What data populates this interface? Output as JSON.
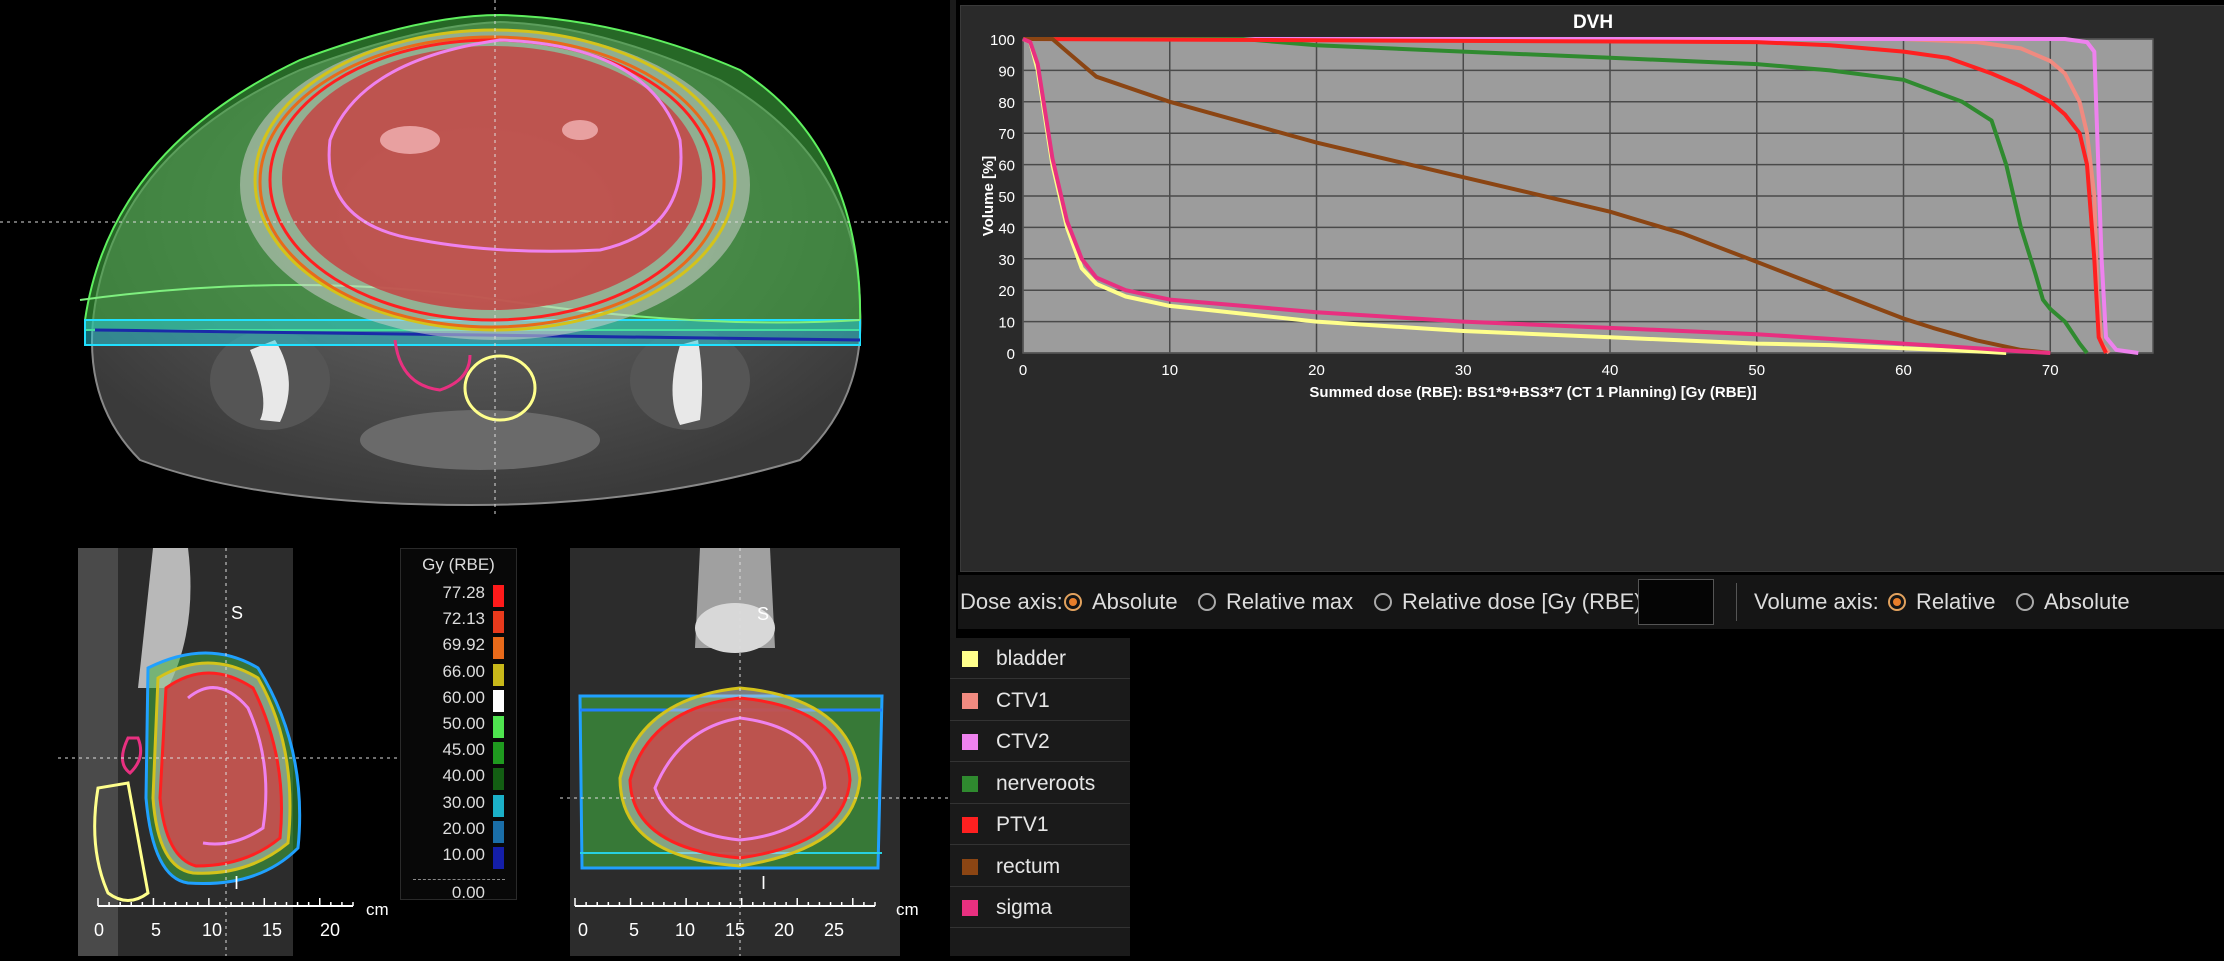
{
  "colorbar": {
    "title": "Gy (RBE)",
    "levels": [
      {
        "value": "77.28",
        "color": "#ff1a1a"
      },
      {
        "value": "72.13",
        "color": "#e83a1c"
      },
      {
        "value": "69.92",
        "color": "#e86a1a"
      },
      {
        "value": "66.00",
        "color": "#c8b81a"
      },
      {
        "value": "60.00",
        "color": "#ffffff"
      },
      {
        "value": "50.00",
        "color": "#4fe44f"
      },
      {
        "value": "45.00",
        "color": "#1f9a1f"
      },
      {
        "value": "40.00",
        "color": "#135e13"
      },
      {
        "value": "30.00",
        "color": "#1bb0c8"
      },
      {
        "value": "20.00",
        "color": "#1a6ea8"
      },
      {
        "value": "10.00",
        "color": "#141ea8"
      },
      {
        "value": "0.00",
        "color": "#080808"
      }
    ]
  },
  "views": {
    "sagittal": {
      "sup": "S",
      "inf": "I",
      "ticks": [
        "0",
        "5",
        "10",
        "15",
        "20"
      ],
      "unit": "cm"
    },
    "coronal": {
      "sup": "S",
      "inf": "I",
      "ticks": [
        "0",
        "5",
        "10",
        "15",
        "20",
        "25"
      ],
      "unit": "cm"
    }
  },
  "dvh": {
    "title": "DVH",
    "ylabel": "Volume [%]",
    "xlabel": "Summed dose (RBE): BS1*9+BS3*7 (CT 1 Planning) [Gy (RBE)]"
  },
  "controls": {
    "dose_axis_label": "Dose axis:",
    "dose_options": [
      "Absolute",
      "Relative max",
      "Relative dose [Gy (RBE)]:"
    ],
    "dose_selected": "Absolute",
    "volume_axis_label": "Volume axis:",
    "volume_options": [
      "Relative",
      "Absolute"
    ],
    "volume_selected": "Relative"
  },
  "legend": [
    {
      "label": "bladder",
      "color": "#ffff8c"
    },
    {
      "label": "CTV1",
      "color": "#f08a80"
    },
    {
      "label": "CTV2",
      "color": "#ee82ee"
    },
    {
      "label": "nerveroots",
      "color": "#2f8a2f"
    },
    {
      "label": "PTV1",
      "color": "#ff2020"
    },
    {
      "label": "rectum",
      "color": "#8b4513"
    },
    {
      "label": "sigma",
      "color": "#e83080"
    }
  ],
  "chart_data": {
    "type": "line",
    "title": "DVH",
    "xlabel": "Summed dose (RBE): BS1*9+BS3*7 (CT 1 Planning) [Gy (RBE)]",
    "ylabel": "Volume [%]",
    "xlim": [
      0,
      77
    ],
    "ylim": [
      0,
      100
    ],
    "xticks": [
      0,
      10,
      20,
      30,
      40,
      50,
      60,
      70
    ],
    "yticks": [
      0,
      10,
      20,
      30,
      40,
      50,
      60,
      70,
      80,
      90,
      100
    ],
    "grid": true,
    "series": [
      {
        "name": "bladder",
        "color": "#ffff8c",
        "x": [
          0,
          0.5,
          1,
          2,
          3,
          4,
          5,
          7,
          10,
          20,
          30,
          40,
          50,
          55,
          60,
          65,
          67
        ],
        "y": [
          100,
          99,
          90,
          60,
          40,
          27,
          22,
          18,
          15,
          10,
          7,
          5,
          3,
          2.5,
          1.5,
          0.5,
          0
        ]
      },
      {
        "name": "CTV1",
        "color": "#f08a80",
        "x": [
          0,
          60,
          65,
          68,
          70,
          71,
          72,
          72.5,
          73,
          73.2,
          73.5,
          74
        ],
        "y": [
          100,
          100,
          99,
          97,
          93,
          89,
          80,
          70,
          50,
          20,
          3,
          0
        ]
      },
      {
        "name": "CTV2",
        "color": "#ee82ee",
        "x": [
          0,
          71,
          72.5,
          73,
          73.2,
          73.5,
          73.8,
          74.5,
          76
        ],
        "y": [
          100,
          100,
          99,
          96,
          70,
          30,
          5,
          1,
          0
        ]
      },
      {
        "name": "nerveroots",
        "color": "#2f8a2f",
        "x": [
          0,
          15,
          20,
          30,
          40,
          50,
          55,
          60,
          64,
          66,
          67,
          68,
          69,
          69.5,
          70,
          71,
          72,
          72.5
        ],
        "y": [
          100,
          100,
          98,
          96,
          94,
          92,
          90,
          87,
          80,
          74,
          60,
          40,
          25,
          17,
          14,
          10,
          3,
          0
        ]
      },
      {
        "name": "PTV1",
        "color": "#ff2020",
        "x": [
          0,
          50,
          55,
          60,
          63,
          66,
          68,
          70,
          71,
          72,
          72.5,
          73,
          73.3,
          73.8
        ],
        "y": [
          100,
          99,
          98,
          96,
          94,
          89,
          85,
          80,
          76,
          70,
          60,
          30,
          5,
          0
        ]
      },
      {
        "name": "rectum",
        "color": "#8b4513",
        "x": [
          0,
          2,
          3,
          5,
          10,
          20,
          30,
          40,
          45,
          50,
          55,
          60,
          62,
          65,
          68,
          70
        ],
        "y": [
          100,
          100,
          96,
          88,
          80,
          67,
          56,
          45,
          38,
          29,
          20,
          11,
          8,
          4,
          1,
          0
        ]
      },
      {
        "name": "sigma",
        "color": "#e83080",
        "x": [
          0,
          0.5,
          1,
          2,
          3,
          4,
          5,
          7,
          10,
          20,
          30,
          40,
          50,
          55,
          60,
          65,
          68,
          70
        ],
        "y": [
          100,
          99,
          92,
          62,
          42,
          30,
          24,
          20,
          17,
          13,
          10,
          8,
          6,
          4.5,
          3,
          1.5,
          0.5,
          0
        ]
      }
    ]
  }
}
